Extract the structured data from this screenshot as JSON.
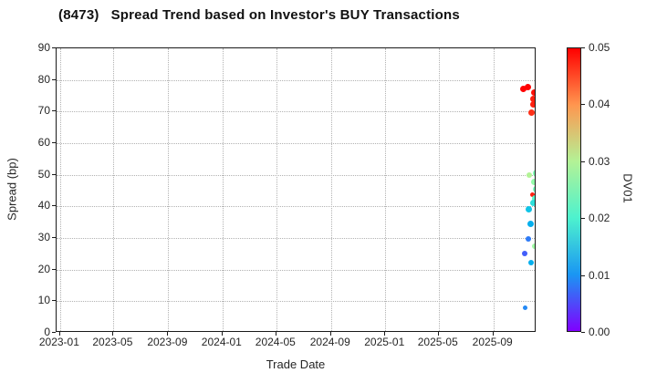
{
  "header": {
    "code": "(8473)",
    "title": "Spread Trend based on Investor's BUY Transactions"
  },
  "chart_data": {
    "type": "scatter",
    "title": "(8473) Spread Trend based on Investor's BUY Transactions",
    "xlabel": "Trade Date",
    "ylabel": "Spread (bp)",
    "ylim": [
      0,
      90
    ],
    "yticks": [
      90,
      80,
      70,
      60,
      50,
      40,
      30,
      20,
      10,
      0
    ],
    "x_range": [
      "2022-12-24",
      "2025-12-07"
    ],
    "xticks": [
      {
        "label": "2023-01",
        "date": "2023-01-01"
      },
      {
        "label": "2023-05",
        "date": "2023-05-01"
      },
      {
        "label": "2023-09",
        "date": "2023-09-01"
      },
      {
        "label": "2024-01",
        "date": "2024-01-01"
      },
      {
        "label": "2024-05",
        "date": "2024-05-01"
      },
      {
        "label": "2024-09",
        "date": "2024-09-01"
      },
      {
        "label": "2025-01",
        "date": "2025-01-01"
      },
      {
        "label": "2025-05",
        "date": "2025-05-01"
      },
      {
        "label": "2025-09",
        "date": "2025-09-01"
      }
    ],
    "grid": "dotted",
    "legend": "none",
    "points": [
      {
        "date": "2025-11-08",
        "spread_bp": 77.3,
        "dv01": 0.05,
        "size": 7
      },
      {
        "date": "2025-11-17",
        "spread_bp": 77.8,
        "dv01": 0.05,
        "size": 7
      },
      {
        "date": "2025-12-02",
        "spread_bp": 76.1,
        "dv01": 0.049,
        "size": 7
      },
      {
        "date": "2025-11-30",
        "spread_bp": 74.1,
        "dv01": 0.048,
        "size": 7
      },
      {
        "date": "2025-11-30",
        "spread_bp": 72.4,
        "dv01": 0.048,
        "size": 7
      },
      {
        "date": "2025-11-26",
        "spread_bp": 69.8,
        "dv01": 0.047,
        "size": 7
      },
      {
        "date": "2025-11-20",
        "spread_bp": 49.8,
        "dv01": 0.03,
        "size": 6
      },
      {
        "date": "2025-12-06",
        "spread_bp": 50.5,
        "dv01": 0.025,
        "size": 8
      },
      {
        "date": "2025-12-02",
        "spread_bp": 47.6,
        "dv01": 0.027,
        "size": 7
      },
      {
        "date": "2025-12-06",
        "spread_bp": 45.3,
        "dv01": 0.024,
        "size": 7
      },
      {
        "date": "2025-11-28",
        "spread_bp": 43.8,
        "dv01": 0.048,
        "size": 5
      },
      {
        "date": "2025-12-04",
        "spread_bp": 42.5,
        "dv01": 0.021,
        "size": 7
      },
      {
        "date": "2025-11-29",
        "spread_bp": 41.1,
        "dv01": 0.017,
        "size": 7
      },
      {
        "date": "2025-11-20",
        "spread_bp": 39.2,
        "dv01": 0.014,
        "size": 7
      },
      {
        "date": "2025-11-24",
        "spread_bp": 34.4,
        "dv01": 0.012,
        "size": 7
      },
      {
        "date": "2025-11-18",
        "spread_bp": 29.6,
        "dv01": 0.008,
        "size": 6
      },
      {
        "date": "2025-12-03",
        "spread_bp": 27.4,
        "dv01": 0.028,
        "size": 6
      },
      {
        "date": "2025-11-10",
        "spread_bp": 25.0,
        "dv01": 0.006,
        "size": 6
      },
      {
        "date": "2025-11-24",
        "spread_bp": 22.1,
        "dv01": 0.012,
        "size": 6
      },
      {
        "date": "2025-11-11",
        "spread_bp": 7.8,
        "dv01": 0.009,
        "size": 5
      }
    ],
    "colorbar": {
      "label": "DV01",
      "min": 0.0,
      "max": 0.05,
      "ticks": [
        "0.05",
        "0.04",
        "0.03",
        "0.02",
        "0.01",
        "0.00"
      ],
      "colormap": "rainbow",
      "gradient_top_to_bottom": [
        "#ff0000",
        "#ff964f",
        "#b3f296",
        "#4df2ce",
        "#1a96f3",
        "#8000ff"
      ]
    }
  }
}
